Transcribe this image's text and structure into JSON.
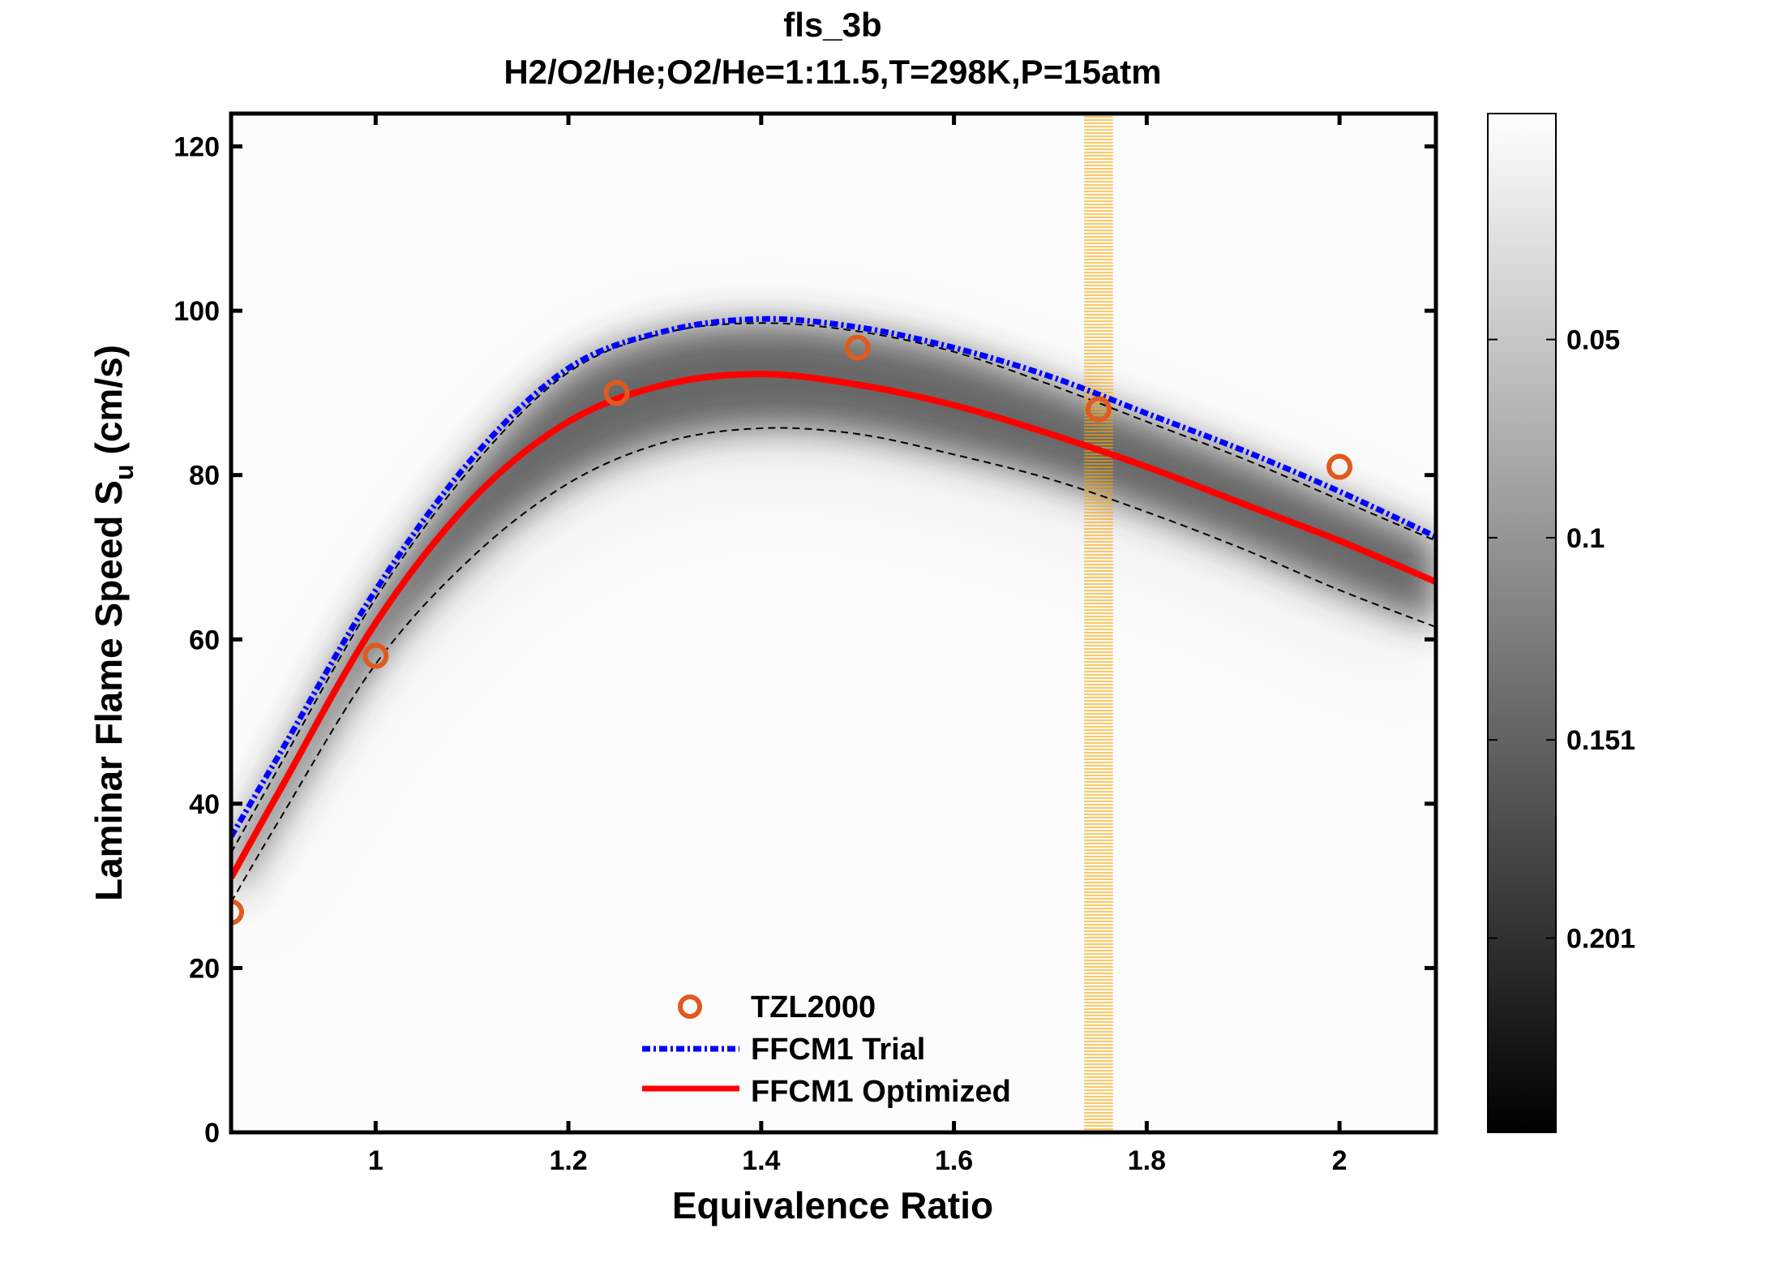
{
  "chart_data": {
    "type": "line",
    "title": "fls_3b",
    "subtitle": "H2/O2/He;O2/He=1:11.5,T=298K,P=15atm",
    "xlabel": "Equivalence Ratio",
    "ylabel_main": "Laminar Flame Speed S",
    "ylabel_sub": "u",
    "ylabel_unit": "(cm/s)",
    "xlim": [
      0.85,
      2.1
    ],
    "ylim": [
      0,
      124
    ],
    "xticks": [
      1,
      1.2,
      1.4,
      1.6,
      1.8,
      2
    ],
    "xtick_labels": [
      "1",
      "1.2",
      "1.4",
      "1.6",
      "1.8",
      "2"
    ],
    "yticks": [
      0,
      20,
      40,
      60,
      80,
      100,
      120
    ],
    "ytick_labels": [
      "0",
      "20",
      "40",
      "60",
      "80",
      "100",
      "120"
    ],
    "grid": false,
    "legend_position": "bottom-center",
    "series": [
      {
        "name": "TZL2000",
        "kind": "scatter",
        "marker": "circle",
        "color": "#e05a1e",
        "x": [
          0.85,
          1.0,
          1.25,
          1.5,
          1.75,
          2.0
        ],
        "y": [
          26.8,
          58.0,
          90.0,
          95.5,
          88.0,
          81.0
        ]
      },
      {
        "name": "FFCM1 Trial",
        "kind": "line",
        "style": "dash-dot",
        "color": "#0000ff",
        "x": [
          0.85,
          0.9,
          1.0,
          1.1,
          1.2,
          1.3,
          1.4,
          1.5,
          1.6,
          1.7,
          1.8,
          1.9,
          2.0,
          2.1
        ],
        "y": [
          36,
          46,
          66,
          82,
          93,
          97.5,
          99,
          98,
          95.5,
          92,
          87.5,
          83,
          78,
          72.5
        ]
      },
      {
        "name": "FFCM1 Optimized",
        "kind": "line",
        "style": "solid",
        "color": "#ff0000",
        "x": [
          0.85,
          0.9,
          1.0,
          1.1,
          1.2,
          1.3,
          1.4,
          1.5,
          1.6,
          1.7,
          1.8,
          1.9,
          2.0,
          2.1
        ],
        "y": [
          31,
          41.5,
          62,
          77,
          86.5,
          91,
          92.3,
          91,
          88.5,
          85,
          81,
          76.5,
          72,
          67
        ]
      }
    ],
    "uncertainty_band": {
      "style": "dashed",
      "color": "#000000",
      "x": [
        0.85,
        0.9,
        1.0,
        1.1,
        1.2,
        1.3,
        1.4,
        1.5,
        1.6,
        1.7,
        1.8,
        1.9,
        2.0,
        2.1
      ],
      "upper": [
        34,
        44.5,
        65,
        81,
        92.5,
        97.3,
        98.5,
        97.5,
        95,
        91,
        86.5,
        82,
        77,
        72
      ],
      "lower": [
        28,
        38,
        57,
        70,
        79,
        84,
        85.7,
        85,
        82.5,
        79.5,
        75.5,
        71,
        66,
        61.5
      ]
    },
    "highlight_x": {
      "value": 1.75,
      "halfwidth": 0.015,
      "color": "#ffa500"
    },
    "colorbar": {
      "colormap": "gray-reversed",
      "range": [
        -0.007,
        0.25
      ],
      "ticks": [
        0.05,
        0.1,
        0.151,
        0.201
      ],
      "tick_labels": [
        "0.05",
        "0.1",
        "0.151",
        "0.201"
      ]
    }
  }
}
